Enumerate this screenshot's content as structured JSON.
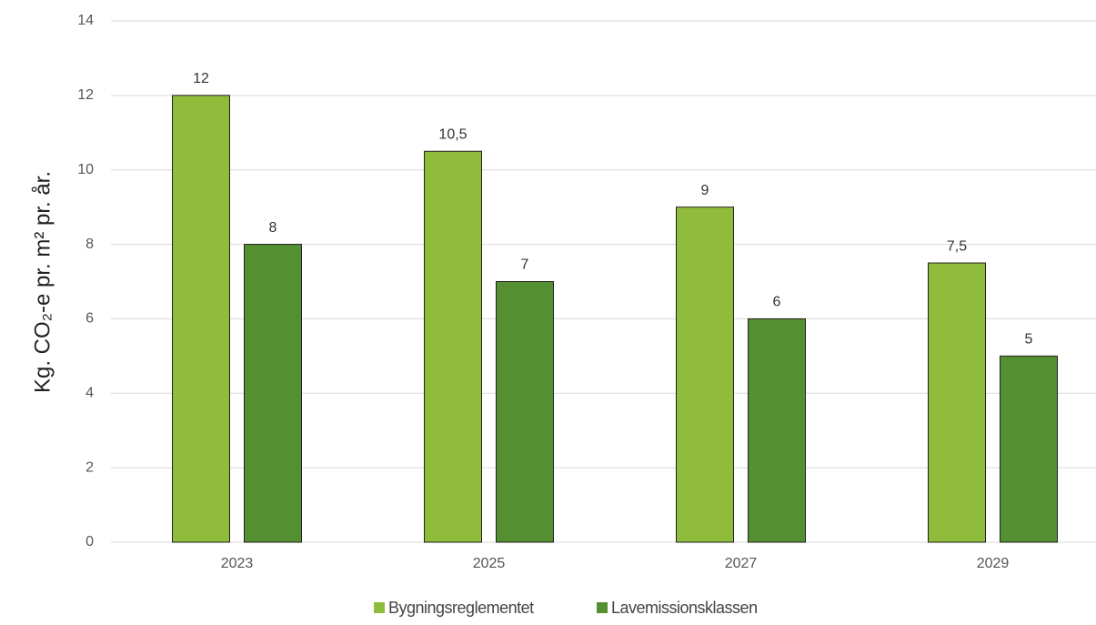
{
  "chart_data": {
    "type": "bar",
    "y_axis_label": "Kg. CO₂-e pr. m² pr. år.",
    "categories": [
      "2023",
      "2025",
      "2027",
      "2029"
    ],
    "series": [
      {
        "name": "Bygningsreglementet",
        "color": "#8fbc3b",
        "values": [
          12,
          10.5,
          9,
          7.5
        ],
        "value_labels": [
          "12",
          "10,5",
          "9",
          "7,5"
        ]
      },
      {
        "name": "Lavemissionsklassen",
        "color": "#548f32",
        "values": [
          8,
          7,
          6,
          5
        ],
        "value_labels": [
          "8",
          "7",
          "6",
          "5"
        ]
      }
    ],
    "ylim": [
      0,
      14
    ],
    "yticks": [
      0,
      2,
      4,
      6,
      8,
      10,
      12,
      14
    ],
    "grid": true,
    "legend": "bottom"
  }
}
